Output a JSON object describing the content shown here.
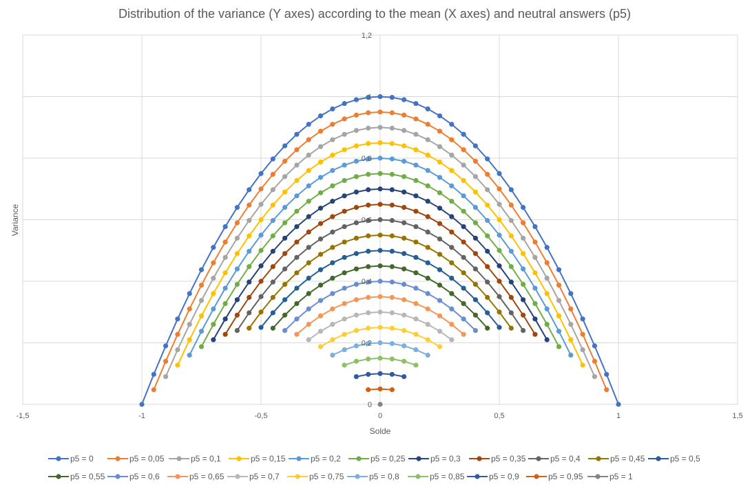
{
  "chart_data": {
    "type": "scatter",
    "title": "Distribution of the variance (Y axes) according to the mean (X axes) and neutral answers (p5)",
    "xlabel": "Solde",
    "ylabel": "Variance",
    "xlim": [
      -1.5,
      1.5
    ],
    "ylim": [
      0,
      1.2
    ],
    "x_ticks": [
      "-1,5",
      "-1",
      "-0,5",
      "0",
      "0,5",
      "1",
      "1,5"
    ],
    "y_ticks": [
      "0",
      "0,2",
      "0,4",
      "0,6",
      "0,8",
      "1",
      "1,2"
    ],
    "grid": true,
    "legend_position": "bottom",
    "series": [
      {
        "name": "p5 = 0",
        "p5": 0,
        "color": "#4472C4"
      },
      {
        "name": "p5 = 0,05",
        "p5": 0.05,
        "color": "#ED7D31"
      },
      {
        "name": "p5 = 0,1",
        "p5": 0.1,
        "color": "#A5A5A5"
      },
      {
        "name": "p5 = 0,15",
        "p5": 0.15,
        "color": "#FFC000"
      },
      {
        "name": "p5 = 0,2",
        "p5": 0.2,
        "color": "#5B9BD5"
      },
      {
        "name": "p5 = 0,25",
        "p5": 0.25,
        "color": "#70AD47"
      },
      {
        "name": "p5 = 0,3",
        "p5": 0.3,
        "color": "#264478"
      },
      {
        "name": "p5 = 0,35",
        "p5": 0.35,
        "color": "#9E480E"
      },
      {
        "name": "p5 = 0,4",
        "p5": 0.4,
        "color": "#636363"
      },
      {
        "name": "p5 = 0,45",
        "p5": 0.45,
        "color": "#997300"
      },
      {
        "name": "p5 = 0,5",
        "p5": 0.5,
        "color": "#255E91"
      },
      {
        "name": "p5 = 0,55",
        "p5": 0.55,
        "color": "#43682B"
      },
      {
        "name": "p5 = 0,6",
        "p5": 0.6,
        "color": "#698ED0"
      },
      {
        "name": "p5 = 0,65",
        "p5": 0.65,
        "color": "#F1975A"
      },
      {
        "name": "p5 = 0,7",
        "p5": 0.7,
        "color": "#B7B7B7"
      },
      {
        "name": "p5 = 0,75",
        "p5": 0.75,
        "color": "#FFCD33"
      },
      {
        "name": "p5 = 0,8",
        "p5": 0.8,
        "color": "#7CAFDD"
      },
      {
        "name": "p5 = 0,85",
        "p5": 0.85,
        "color": "#8CC168"
      },
      {
        "name": "p5 = 0,9",
        "p5": 0.9,
        "color": "#335AA1"
      },
      {
        "name": "p5 = 0,95",
        "p5": 0.95,
        "color": "#D26012"
      },
      {
        "name": "p5 = 1",
        "p5": 1,
        "color": "#848484"
      }
    ]
  }
}
